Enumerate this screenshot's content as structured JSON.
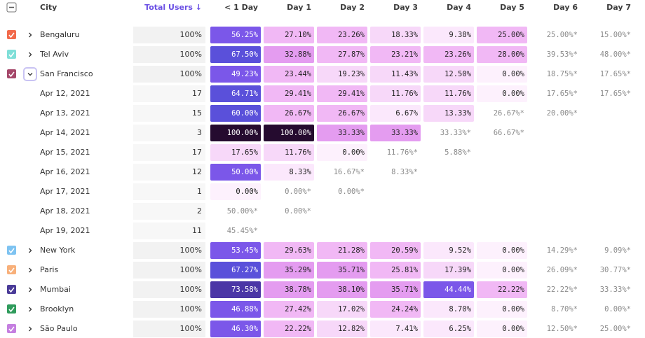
{
  "table": {
    "headers": [
      "City",
      "Total Users ↓",
      "< 1 Day",
      "Day 1",
      "Day 2",
      "Day 3",
      "Day 4",
      "Day 5",
      "Day 6",
      "Day 7"
    ],
    "rows": [
      {
        "name": "Bengaluru",
        "color": "#f26a4b",
        "total": "100%",
        "cells": [
          "56.25%",
          "27.10%",
          "23.26%",
          "18.33%",
          "9.38%",
          "25.00%",
          "25.00%*",
          "15.00%*"
        ]
      },
      {
        "name": "Tel Aviv",
        "color": "#7fdfd8",
        "total": "100%",
        "cells": [
          "67.50%",
          "32.88%",
          "27.87%",
          "23.21%",
          "23.26%",
          "28.00%",
          "39.53%*",
          "48.00%*"
        ]
      },
      {
        "name": "San Francisco",
        "color": "#a5476a",
        "total": "100%",
        "cells": [
          "49.23%",
          "23.44%",
          "19.23%",
          "11.43%",
          "12.50%",
          "0.00%",
          "18.75%*",
          "17.65%*"
        ],
        "children": [
          {
            "name": "Apr 12, 2021",
            "total": "17",
            "cells": [
              "64.71%",
              "29.41%",
              "29.41%",
              "11.76%",
              "11.76%",
              "0.00%",
              "17.65%*",
              "17.65%*"
            ]
          },
          {
            "name": "Apr 13, 2021",
            "total": "15",
            "cells": [
              "60.00%",
              "26.67%",
              "26.67%",
              "6.67%",
              "13.33%",
              "26.67%*",
              "20.00%*"
            ]
          },
          {
            "name": "Apr 14, 2021",
            "total": "3",
            "cells": [
              "100.00%",
              "100.00%",
              "33.33%",
              "33.33%",
              "33.33%*",
              "66.67%*"
            ]
          },
          {
            "name": "Apr 15, 2021",
            "total": "17",
            "cells": [
              "17.65%",
              "11.76%",
              "0.00%",
              "11.76%*",
              "5.88%*"
            ]
          },
          {
            "name": "Apr 16, 2021",
            "total": "12",
            "cells": [
              "50.00%",
              "8.33%",
              "16.67%*",
              "8.33%*"
            ]
          },
          {
            "name": "Apr 17, 2021",
            "total": "1",
            "cells": [
              "0.00%",
              "0.00%*",
              "0.00%*"
            ]
          },
          {
            "name": "Apr 18, 2021",
            "total": "2",
            "cells": [
              "50.00%*",
              "0.00%*"
            ]
          },
          {
            "name": "Apr 19, 2021",
            "total": "11",
            "cells": [
              "45.45%*"
            ]
          }
        ]
      },
      {
        "name": "New York",
        "color": "#7ec3f1",
        "total": "100%",
        "cells": [
          "53.45%",
          "29.63%",
          "21.28%",
          "20.59%",
          "9.52%",
          "0.00%",
          "14.29%*",
          "9.09%*"
        ]
      },
      {
        "name": "Paris",
        "color": "#f8b07a",
        "total": "100%",
        "cells": [
          "67.27%",
          "35.29%",
          "35.71%",
          "25.81%",
          "17.39%",
          "0.00%",
          "26.09%*",
          "30.77%*"
        ]
      },
      {
        "name": "Mumbai",
        "color": "#4a3b98",
        "total": "100%",
        "cells": [
          "73.58%",
          "38.78%",
          "38.10%",
          "35.71%",
          "44.44%",
          "22.22%",
          "22.22%*",
          "33.33%*"
        ]
      },
      {
        "name": "Brooklyn",
        "color": "#2f9b5c",
        "total": "100%",
        "cells": [
          "46.88%",
          "27.42%",
          "17.02%",
          "24.24%",
          "8.70%",
          "0.00%",
          "8.70%*",
          "0.00%*"
        ]
      },
      {
        "name": "São Paulo",
        "color": "#c57fe0",
        "total": "100%",
        "cells": [
          "46.30%",
          "22.22%",
          "12.82%",
          "7.41%",
          "6.25%",
          "0.00%",
          "12.50%*",
          "25.00%*"
        ]
      }
    ]
  }
}
